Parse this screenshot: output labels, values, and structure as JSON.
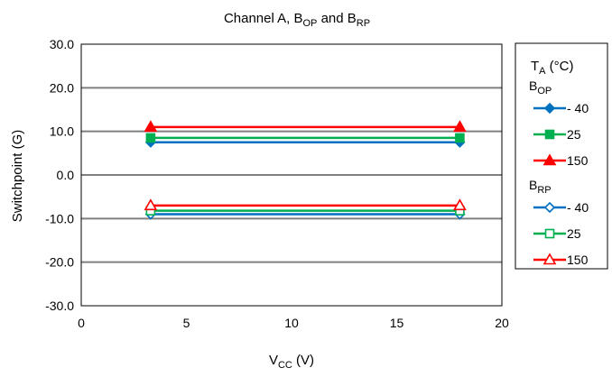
{
  "chart_data": {
    "type": "line",
    "title": {
      "main": "Channel A, B",
      "sub1": "OP",
      "mid": " and B",
      "sub2": "RP"
    },
    "xlabel": {
      "main": "V",
      "sub": "CC",
      "unit": " (V)"
    },
    "ylabel": "Switchpoint (G)",
    "xlim": [
      0,
      20
    ],
    "ylim": [
      -30,
      30
    ],
    "xticks": [
      "0",
      "5",
      "10",
      "15",
      "20"
    ],
    "yticks": [
      "-30.0",
      "-20.0",
      "-10.0",
      "0.0",
      "10.0",
      "20.0",
      "30.0"
    ],
    "grid": "horizontal",
    "legend": {
      "placement": "right",
      "title_main": "T",
      "title_sub": "A",
      "title_unit": " (°C)",
      "group_bop_main": "B",
      "group_bop_sub": "OP",
      "group_brp_main": "B",
      "group_brp_sub": "RP"
    },
    "series": [
      {
        "name": "- 40",
        "group": "BOP",
        "marker": "diamond",
        "filled": true,
        "color": "#0070C0",
        "x": [
          3.3,
          18
        ],
        "y": [
          7.5,
          7.5
        ]
      },
      {
        "name": "25",
        "group": "BOP",
        "marker": "square",
        "filled": true,
        "color": "#00B050",
        "x": [
          3.3,
          18
        ],
        "y": [
          8.5,
          8.5
        ]
      },
      {
        "name": "150",
        "group": "BOP",
        "marker": "triangle",
        "filled": true,
        "color": "#FF0000",
        "x": [
          3.3,
          18
        ],
        "y": [
          11.0,
          11.0
        ]
      },
      {
        "name": "- 40",
        "group": "BRP",
        "marker": "diamond",
        "filled": false,
        "color": "#0070C0",
        "x": [
          3.3,
          18
        ],
        "y": [
          -9.0,
          -9.0
        ]
      },
      {
        "name": "25",
        "group": "BRP",
        "marker": "square",
        "filled": false,
        "color": "#00B050",
        "x": [
          3.3,
          18
        ],
        "y": [
          -8.2,
          -8.2
        ]
      },
      {
        "name": "150",
        "group": "BRP",
        "marker": "triangle",
        "filled": false,
        "color": "#FF0000",
        "x": [
          3.3,
          18
        ],
        "y": [
          -7.0,
          -7.0
        ]
      }
    ]
  }
}
